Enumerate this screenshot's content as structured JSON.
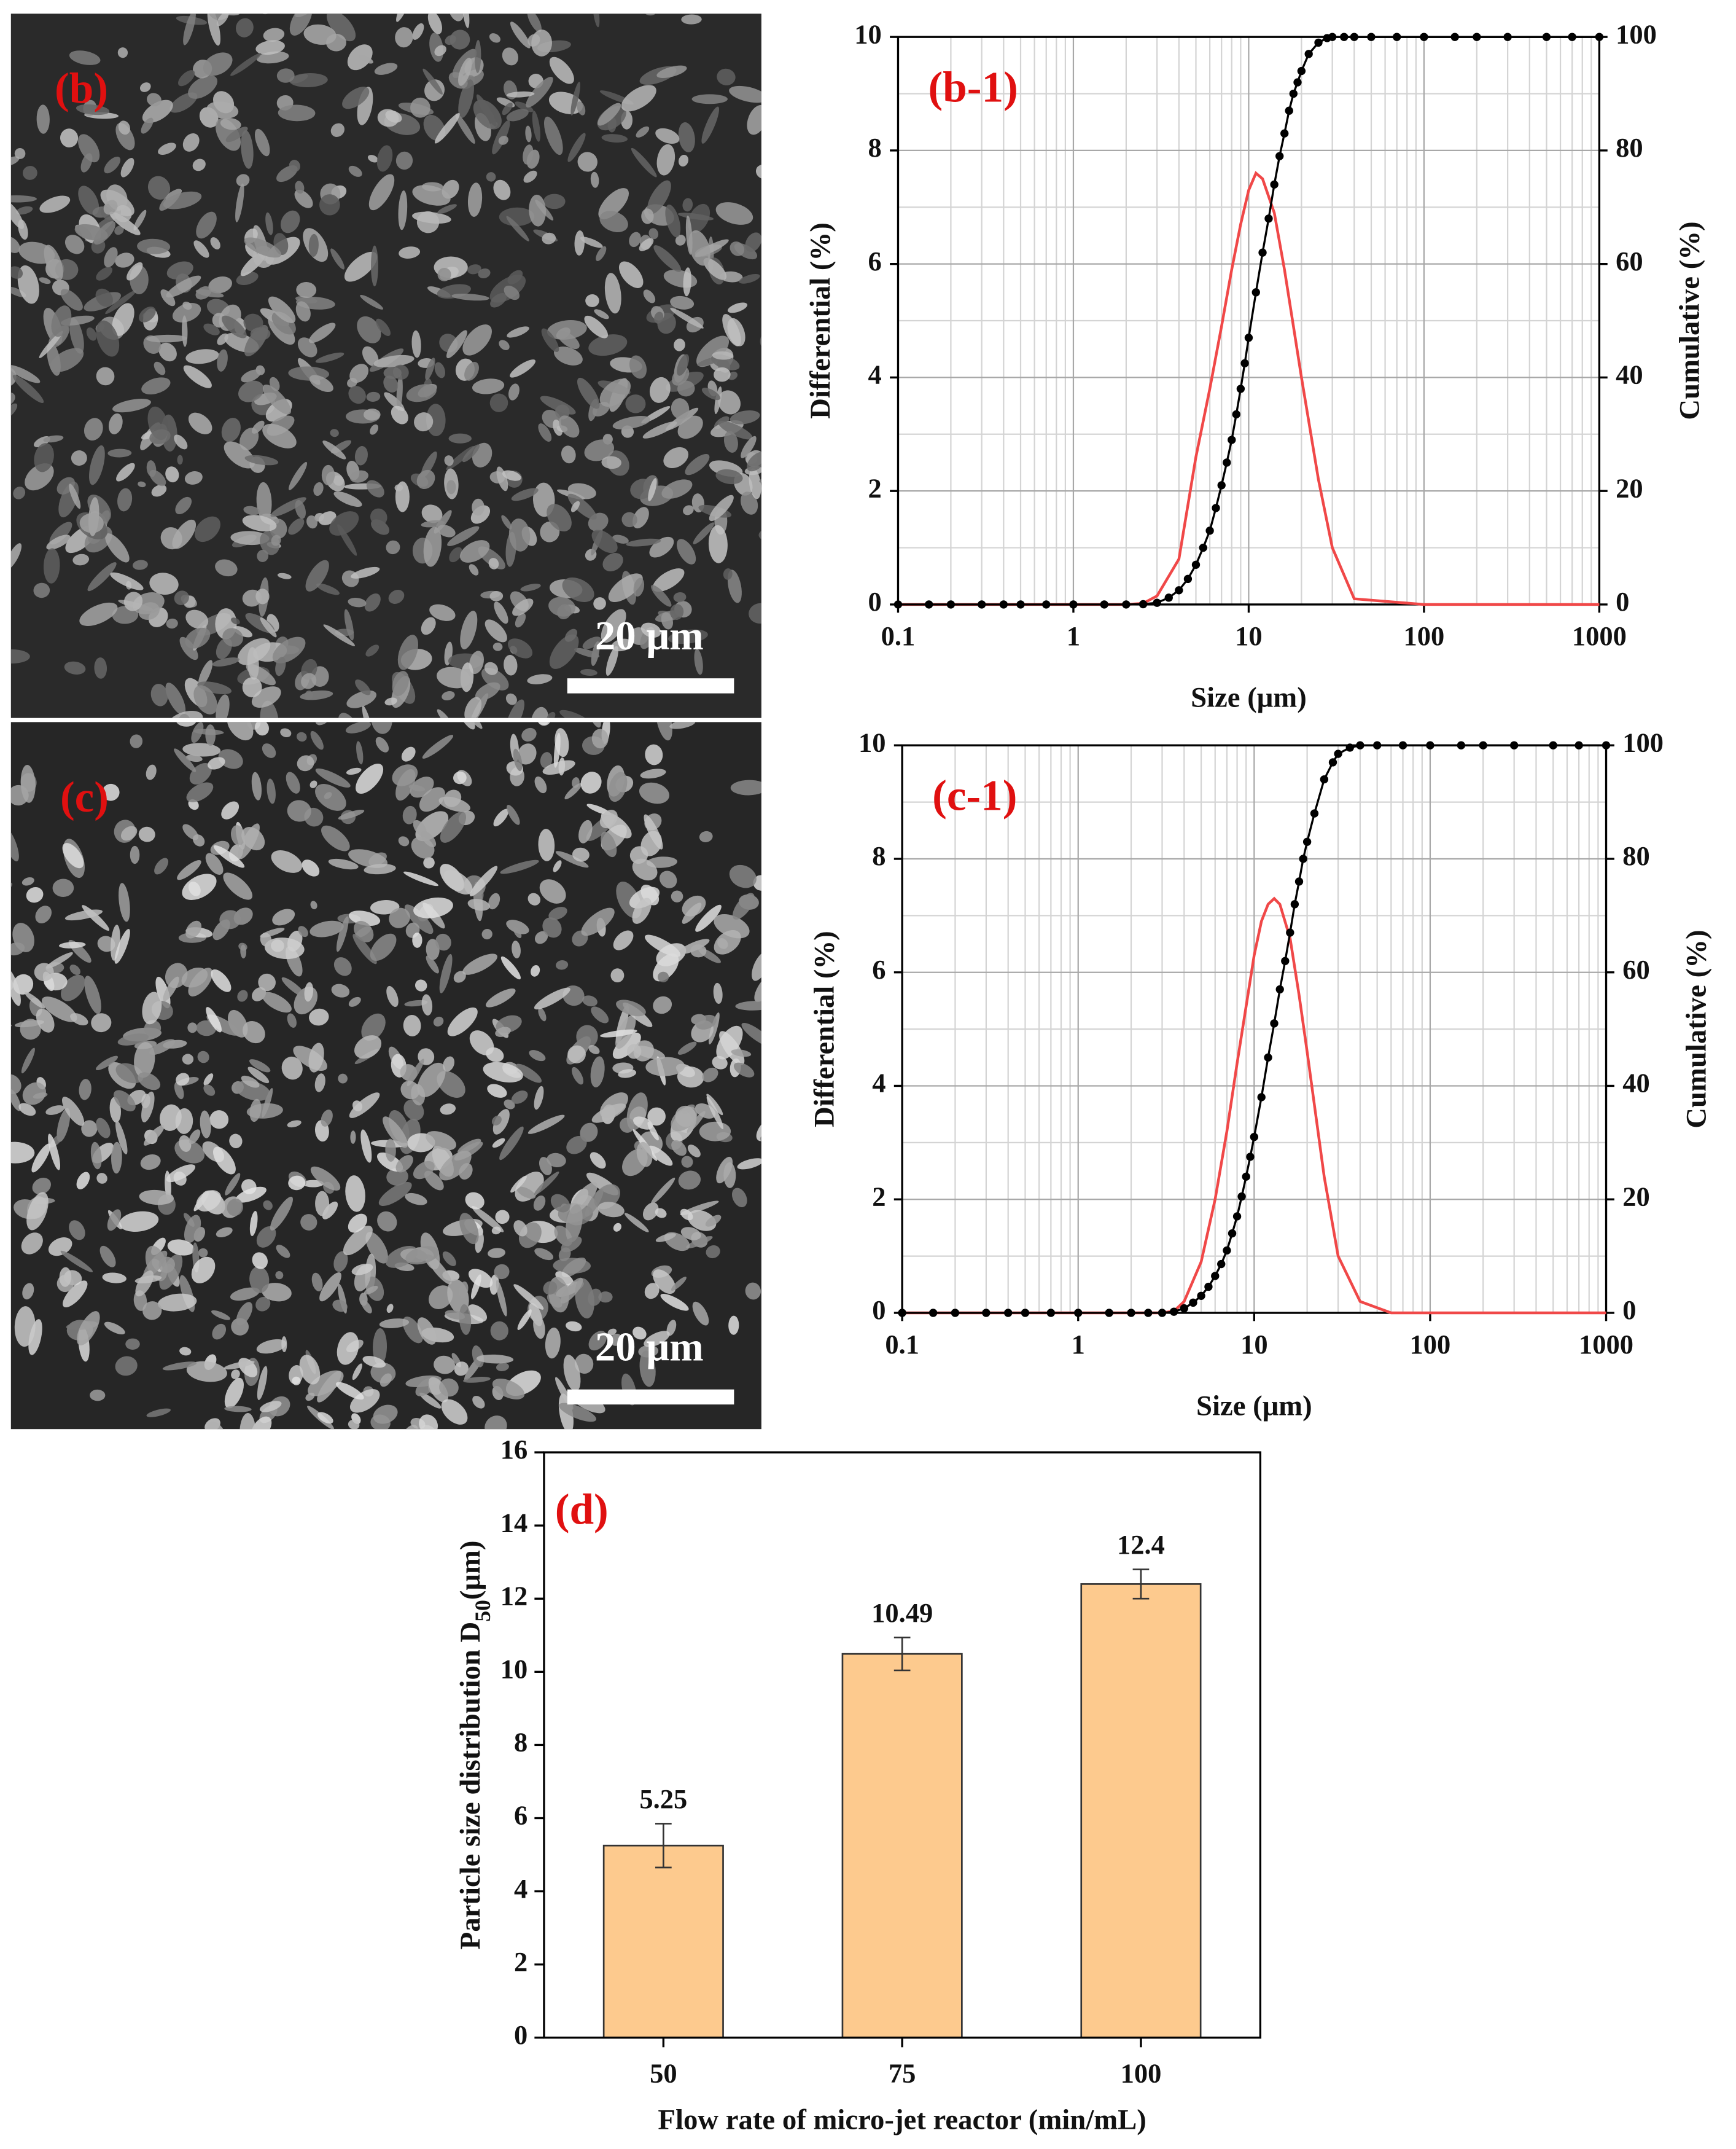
{
  "images": [
    {
      "label": "(b)",
      "scale_bar": "20 μm"
    },
    {
      "label": "(c)",
      "scale_bar": "20 μm"
    }
  ],
  "chart_data": [
    {
      "type": "line",
      "annotation": "(b-1)",
      "xlabel": "Size (μm)",
      "ylabel": "Differential (%)",
      "y2label": "Cumulative (%)",
      "xscale": "log",
      "xlim": [
        0.1,
        1000
      ],
      "xticks": [
        0.1,
        1,
        10,
        100,
        1000
      ],
      "xminorticks": [
        0.2,
        0.3,
        0.4,
        0.5,
        0.6,
        0.7,
        0.8,
        0.9,
        2,
        3,
        4,
        5,
        6,
        7,
        8,
        9,
        20,
        30,
        40,
        50,
        60,
        70,
        80,
        90,
        200,
        300,
        400,
        500,
        600,
        700,
        800,
        900
      ],
      "ylim": [
        0,
        10
      ],
      "yticks": [
        0,
        2,
        4,
        6,
        8,
        10
      ],
      "yminorticks": [
        1,
        3,
        5,
        7,
        9
      ],
      "y2lim": [
        0,
        100
      ],
      "y2ticks": [
        0,
        20,
        40,
        60,
        80,
        100
      ],
      "grid": true,
      "series": [
        {
          "color": "#f04848",
          "x": [
            0.1,
            1,
            2,
            2.5,
            3,
            4,
            5,
            6,
            7,
            8,
            9,
            10,
            11,
            12,
            14,
            16,
            18,
            20,
            25,
            30,
            40,
            100,
            1000
          ],
          "values": [
            0,
            0,
            0,
            0.02,
            0.15,
            0.8,
            2.6,
            3.8,
            4.9,
            5.9,
            6.7,
            7.3,
            7.6,
            7.5,
            6.9,
            5.9,
            4.9,
            4.0,
            2.2,
            1.0,
            0.1,
            0,
            0
          ]
        },
        {
          "color": "#000000",
          "axis": "y2",
          "markers": true,
          "x": [
            0.1,
            0.15,
            0.2,
            0.3,
            0.4,
            0.5,
            0.7,
            1,
            1.5,
            2,
            2.5,
            3,
            3.5,
            4,
            4.5,
            5,
            5.5,
            6,
            6.5,
            7,
            7.5,
            8,
            8.5,
            9,
            9.5,
            10,
            11,
            12,
            13,
            14,
            15,
            16,
            17,
            18,
            19,
            20,
            22,
            25,
            28,
            30,
            35,
            40,
            50,
            70,
            100,
            150,
            200,
            300,
            500,
            700,
            1000
          ],
          "values": [
            0,
            0,
            0,
            0,
            0,
            0,
            0,
            0,
            0,
            0,
            0.05,
            0.3,
            1.2,
            2.5,
            4.5,
            7,
            10,
            13,
            17,
            21,
            25,
            29,
            33.5,
            38,
            42.5,
            47,
            55,
            62,
            68,
            74,
            79,
            83,
            87,
            90,
            92,
            94,
            97,
            99,
            99.8,
            100,
            100,
            100,
            100,
            100,
            100,
            100,
            100,
            100,
            100,
            100,
            100
          ]
        }
      ]
    },
    {
      "type": "line",
      "annotation": "(c-1)",
      "xlabel": "Size (μm)",
      "ylabel": "Differential (%)",
      "y2label": "Cumulative (%)",
      "xscale": "log",
      "xlim": [
        0.1,
        1000
      ],
      "xticks": [
        0.1,
        1,
        10,
        100,
        1000
      ],
      "xminorticks": [
        0.2,
        0.3,
        0.4,
        0.5,
        0.6,
        0.7,
        0.8,
        0.9,
        2,
        3,
        4,
        5,
        6,
        7,
        8,
        9,
        20,
        30,
        40,
        50,
        60,
        70,
        80,
        90,
        200,
        300,
        400,
        500,
        600,
        700,
        800,
        900
      ],
      "ylim": [
        0,
        10
      ],
      "yticks": [
        0,
        2,
        4,
        6,
        8,
        10
      ],
      "yminorticks": [
        1,
        3,
        5,
        7,
        9
      ],
      "y2lim": [
        0,
        100
      ],
      "y2ticks": [
        0,
        20,
        40,
        60,
        80,
        100
      ],
      "grid": true,
      "series": [
        {
          "color": "#f04848",
          "x": [
            0.1,
            1,
            3,
            3.5,
            4,
            5,
            6,
            7,
            8,
            9,
            10,
            11,
            12,
            13,
            14,
            16,
            18,
            20,
            25,
            30,
            40,
            60,
            100,
            1000
          ],
          "values": [
            0,
            0,
            0,
            0.03,
            0.2,
            0.9,
            2.0,
            3.2,
            4.4,
            5.4,
            6.3,
            6.9,
            7.2,
            7.3,
            7.2,
            6.6,
            5.6,
            4.6,
            2.4,
            1.0,
            0.2,
            0,
            0,
            0
          ]
        },
        {
          "color": "#000000",
          "axis": "y2",
          "markers": true,
          "x": [
            0.1,
            0.15,
            0.2,
            0.3,
            0.4,
            0.5,
            0.7,
            1,
            1.5,
            2,
            2.5,
            3,
            3.5,
            4,
            4.5,
            5,
            5.5,
            6,
            6.5,
            7,
            7.5,
            8,
            8.5,
            9,
            9.5,
            10,
            11,
            12,
            13,
            14,
            15,
            16,
            17,
            18,
            19,
            20,
            22,
            25,
            28,
            30,
            35,
            40,
            50,
            70,
            100,
            150,
            200,
            300,
            500,
            700,
            1000
          ],
          "values": [
            0,
            0,
            0,
            0,
            0,
            0,
            0,
            0,
            0,
            0,
            0,
            0,
            0.2,
            0.8,
            1.8,
            3,
            4.6,
            6.5,
            8.6,
            11,
            14,
            17,
            20.5,
            24,
            27.5,
            31,
            38,
            45,
            51,
            57,
            62,
            67,
            72,
            76,
            80,
            83,
            88,
            94,
            97,
            98.5,
            99.6,
            100,
            100,
            100,
            100,
            100,
            100,
            100,
            100,
            100,
            100
          ]
        }
      ]
    },
    {
      "type": "bar",
      "annotation": "(d)",
      "xlabel": "Flow rate of micro-jet reactor (min/mL)",
      "ylabel": [
        "Particle size distribution D",
        "50",
        "(μm)"
      ],
      "categories": [
        "50",
        "75",
        "100"
      ],
      "values": [
        5.25,
        10.49,
        12.4
      ],
      "errors": [
        0.6,
        0.45,
        0.4
      ],
      "color": "#fdca8e",
      "ylim": [
        0,
        16
      ],
      "yticks": [
        0,
        2,
        4,
        6,
        8,
        10,
        12,
        14,
        16
      ]
    }
  ]
}
